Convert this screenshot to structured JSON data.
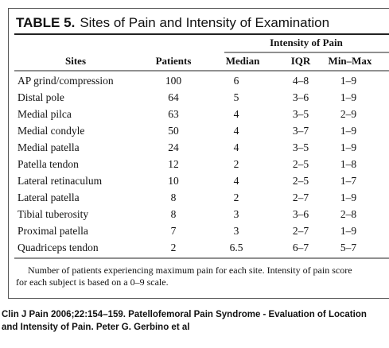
{
  "title": {
    "label": "TABLE 5.",
    "text": "Sites of Pain and Intensity of Examination"
  },
  "table": {
    "group_header": "Intensity of Pain",
    "columns": [
      "Sites",
      "Patients",
      "Median",
      "IQR",
      "Min–Max"
    ],
    "rows": [
      [
        "AP grind/compression",
        100,
        6,
        "4–8",
        "1–9"
      ],
      [
        "Distal pole",
        64,
        5,
        "3–6",
        "1–9"
      ],
      [
        "Medial pilca",
        63,
        4,
        "3–5",
        "2–9"
      ],
      [
        "Medial condyle",
        50,
        4,
        "3–7",
        "1–9"
      ],
      [
        "Medial patella",
        24,
        4,
        "3–5",
        "1–9"
      ],
      [
        "Patella tendon",
        12,
        2,
        "2–5",
        "1–8"
      ],
      [
        "Lateral retinaculum",
        10,
        4,
        "2–5",
        "1–7"
      ],
      [
        "Lateral patella",
        8,
        2,
        "2–7",
        "1–9"
      ],
      [
        "Tibial tuberosity",
        8,
        3,
        "3–6",
        "2–8"
      ],
      [
        "Proximal patella",
        7,
        3,
        "2–7",
        "1–9"
      ],
      [
        "Quadriceps tendon",
        2,
        6.5,
        "6–7",
        "5–7"
      ]
    ],
    "footnote": [
      "Number of patients experiencing maximum pain for each site. Intensity of pain score",
      "for each subject is based on a 0–9 scale."
    ]
  },
  "citation": [
    "Clin J Pain 2006;22:154–159. Patellofemoral Pain Syndrome - Evaluation of Location",
    "and Intensity of Pain.  Peter G. Gerbino et al"
  ]
}
